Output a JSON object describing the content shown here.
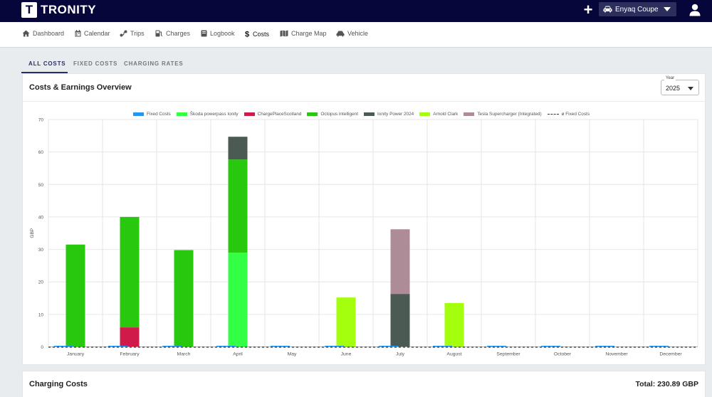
{
  "app": {
    "logo_letter": "T",
    "logo_text": "TRONITY",
    "plus_label": "+",
    "vehicle": "Enyaq Coupe"
  },
  "nav": [
    {
      "label": "Dashboard",
      "icon": "home-icon"
    },
    {
      "label": "Calendar",
      "icon": "calendar-icon"
    },
    {
      "label": "Trips",
      "icon": "route-icon"
    },
    {
      "label": "Charges",
      "icon": "charger-icon"
    },
    {
      "label": "Logbook",
      "icon": "book-icon"
    },
    {
      "label": "Costs",
      "icon": "dollar-icon",
      "active": true
    },
    {
      "label": "Charge Map",
      "icon": "map-icon"
    },
    {
      "label": "Vehicle",
      "icon": "car-icon"
    }
  ],
  "subtabs": [
    {
      "label": "ALL COSTS",
      "active": true
    },
    {
      "label": "FIXED COSTS"
    },
    {
      "label": "CHARGING RATES"
    }
  ],
  "overview": {
    "title": "Costs & Earnings Overview",
    "year_label": "Year",
    "year_value": "2025"
  },
  "charging_costs": {
    "title": "Charging Costs",
    "total": "Total: 230.89 GBP"
  },
  "legend": [
    {
      "label": "Fixed Costs",
      "color": "#2196f3",
      "type": "swatch"
    },
    {
      "label": "Škoda powerpass Ionity",
      "color": "#33ff44",
      "type": "swatch"
    },
    {
      "label": "ChargePlaceScotland",
      "color": "#d01b4a",
      "type": "swatch"
    },
    {
      "label": "Octopus intelligent",
      "color": "#28c80f",
      "type": "swatch"
    },
    {
      "label": "Ionity Power 2024",
      "color": "#4b5a52",
      "type": "swatch"
    },
    {
      "label": "Arnold Clark",
      "color": "#a3ff0e",
      "type": "swatch"
    },
    {
      "label": "Tesla Supercharger (Integrated)",
      "color": "#ad8c97",
      "type": "swatch"
    },
    {
      "label": "ø Fixed Costs",
      "color": "#333333",
      "type": "line"
    }
  ],
  "chart_data": {
    "type": "bar",
    "stacked": true,
    "categories": [
      "January",
      "February",
      "March",
      "April",
      "May",
      "June",
      "July",
      "August",
      "September",
      "October",
      "November",
      "December"
    ],
    "ylabel": "GBP",
    "ylim": [
      0,
      70
    ],
    "yticks": [
      0,
      10,
      20,
      30,
      40,
      50,
      60,
      70
    ],
    "grid": true,
    "legend_position": "top",
    "series": [
      {
        "name": "Fixed Costs",
        "color": "#2196f3",
        "values": [
          0,
          0,
          0,
          0,
          0,
          0,
          0,
          0,
          0,
          0,
          0,
          0
        ]
      },
      {
        "name": "Škoda powerpass Ionity",
        "color": "#33ff44",
        "values": [
          0,
          0,
          0,
          29,
          0,
          0,
          0,
          0,
          0,
          0,
          0,
          0
        ]
      },
      {
        "name": "ChargePlaceScotland",
        "color": "#d01b4a",
        "values": [
          0,
          6,
          0,
          0,
          0,
          0,
          0,
          0,
          0,
          0,
          0,
          0
        ]
      },
      {
        "name": "Octopus intelligent",
        "color": "#28c80f",
        "values": [
          31.5,
          34,
          29.8,
          28.7,
          0,
          0,
          0,
          0,
          0,
          0,
          0,
          0
        ]
      },
      {
        "name": "Ionity Power 2024",
        "color": "#4b5a52",
        "values": [
          0,
          0,
          0,
          7,
          0,
          0,
          16.3,
          0,
          0,
          0,
          0,
          0
        ]
      },
      {
        "name": "Arnold Clark",
        "color": "#a3ff0e",
        "values": [
          0,
          0,
          0,
          0,
          0,
          15.2,
          0,
          13.5,
          0,
          0,
          0,
          0
        ]
      },
      {
        "name": "Tesla Supercharger (Integrated)",
        "color": "#ad8c97",
        "values": [
          0,
          0,
          0,
          0,
          0,
          0,
          19.9,
          0,
          0,
          0,
          0,
          0
        ]
      }
    ],
    "average_line": {
      "name": "ø Fixed Costs",
      "value": 0,
      "style": "dashed"
    }
  }
}
